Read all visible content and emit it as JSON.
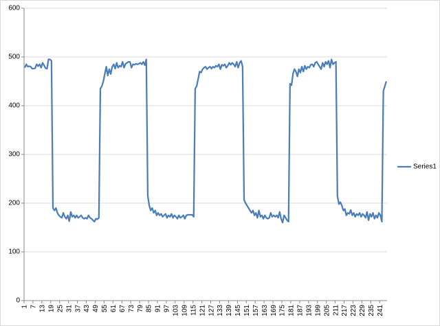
{
  "chart_data": {
    "type": "line",
    "categories": [
      "1",
      null,
      null,
      null,
      null,
      null,
      "7",
      null,
      null,
      null,
      null,
      null,
      "13",
      null,
      null,
      null,
      null,
      null,
      "19",
      null,
      null,
      null,
      null,
      null,
      "25",
      null,
      null,
      null,
      null,
      null,
      "31",
      null,
      null,
      null,
      null,
      null,
      "37",
      null,
      null,
      null,
      null,
      null,
      "43",
      null,
      null,
      null,
      null,
      null,
      "49",
      null,
      null,
      null,
      null,
      null,
      "55",
      null,
      null,
      null,
      null,
      null,
      "61",
      null,
      null,
      null,
      null,
      null,
      "67",
      null,
      null,
      null,
      null,
      null,
      "73",
      null,
      null,
      null,
      null,
      null,
      "79",
      null,
      null,
      null,
      null,
      null,
      "85",
      null,
      null,
      null,
      null,
      null,
      "91",
      null,
      null,
      null,
      null,
      null,
      "97",
      null,
      null,
      null,
      null,
      null,
      "103",
      null,
      null,
      null,
      null,
      null,
      "109",
      null,
      null,
      null,
      null,
      null,
      "115",
      null,
      null,
      null,
      null,
      null,
      "121",
      null,
      null,
      null,
      null,
      null,
      "127",
      null,
      null,
      null,
      null,
      null,
      "133",
      null,
      null,
      null,
      null,
      null,
      "139",
      null,
      null,
      null,
      null,
      null,
      "145",
      null,
      null,
      null,
      null,
      null,
      "151",
      null,
      null,
      null,
      null,
      null,
      "157",
      null,
      null,
      null,
      null,
      null,
      "163",
      null,
      null,
      null,
      null,
      null,
      "169",
      null,
      null,
      null,
      null,
      null,
      "175",
      null,
      null,
      null,
      null,
      null,
      "181",
      null,
      null,
      null,
      null,
      null,
      "187",
      null,
      null,
      null,
      null,
      null,
      "193",
      null,
      null,
      null,
      null,
      null,
      "199",
      null,
      null,
      null,
      null,
      null,
      "205",
      null,
      null,
      null,
      null,
      null,
      "211",
      null,
      null,
      null,
      null,
      null,
      "217",
      null,
      null,
      null,
      null,
      null,
      "223",
      null,
      null,
      null,
      null,
      null,
      "229",
      null,
      null,
      null,
      null,
      null,
      "235",
      null,
      null,
      null,
      null,
      null,
      "241",
      null,
      null,
      null,
      null
    ],
    "series": [
      {
        "name": "Series1",
        "color": "#4a7ebb",
        "values": [
          478,
          485,
          480,
          481,
          480,
          476,
          476,
          477,
          485,
          481,
          485,
          478,
          488,
          483,
          477,
          476,
          495,
          495,
          492,
          190,
          185,
          190,
          180,
          175,
          172,
          170,
          180,
          172,
          168,
          175,
          163,
          182,
          172,
          175,
          170,
          175,
          170,
          172,
          175,
          170,
          168,
          170,
          168,
          175,
          170,
          168,
          165,
          162,
          168,
          167,
          170,
          435,
          440,
          450,
          465,
          480,
          462,
          475,
          465,
          480,
          485,
          476,
          488,
          478,
          482,
          480,
          490,
          478,
          486,
          488,
          490,
          490,
          478,
          485,
          484,
          486,
          485,
          486,
          488,
          485,
          490,
          483,
          495,
          215,
          195,
          185,
          190,
          180,
          185,
          175,
          180,
          175,
          178,
          172,
          175,
          178,
          170,
          175,
          172,
          178,
          170,
          175,
          172,
          168,
          175,
          170,
          172,
          175,
          168,
          175,
          176,
          176,
          176,
          176,
          172,
          435,
          440,
          455,
          470,
          468,
          475,
          478,
          480,
          475,
          478,
          480,
          476,
          480,
          478,
          482,
          480,
          485,
          475,
          484,
          482,
          485,
          478,
          482,
          488,
          484,
          488,
          485,
          480,
          490,
          478,
          488,
          492,
          480,
          207,
          200,
          195,
          190,
          185,
          180,
          185,
          175,
          180,
          170,
          185,
          172,
          175,
          168,
          175,
          170,
          168,
          170,
          180,
          172,
          175,
          172,
          175,
          170,
          182,
          168,
          160,
          175,
          170,
          165,
          162,
          445,
          442,
          465,
          475,
          470,
          460,
          475,
          468,
          480,
          470,
          482,
          475,
          480,
          478,
          484,
          485,
          480,
          488,
          490,
          485,
          480,
          475,
          488,
          480,
          490,
          485,
          492,
          478,
          495,
          485,
          488,
          490,
          215,
          198,
          202,
          195,
          185,
          188,
          175,
          180,
          178,
          186,
          175,
          180,
          172,
          178,
          175,
          180,
          172,
          178,
          175,
          170,
          182,
          165,
          178,
          172,
          180,
          168,
          175,
          170,
          180,
          175,
          162,
          430,
          440,
          450
        ]
      }
    ],
    "ylim": [
      0,
      600
    ],
    "yticks": [
      0,
      100,
      200,
      300,
      400,
      500,
      600
    ],
    "grid": true,
    "legend": "right"
  }
}
